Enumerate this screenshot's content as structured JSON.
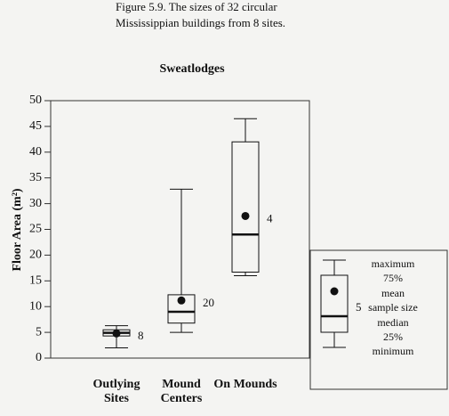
{
  "chart_data": {
    "type": "box",
    "caption": [
      "Figure 5.9. The sizes of 32 circular",
      "Mississippian buildings from 8 sites."
    ],
    "title": "Sweatlodges",
    "y_label": "Floor Area (m²)",
    "categories": [
      "Outlying Sites",
      "Mound Centers",
      "On Mounds"
    ],
    "min": [
      2,
      5,
      16
    ],
    "q1": [
      4.3,
      6.8,
      16.7
    ],
    "median": [
      4.9,
      9,
      24
    ],
    "q3": [
      5.5,
      12.3,
      42
    ],
    "max": [
      6.3,
      32.8,
      46.5
    ],
    "mean": [
      4.8,
      11.2,
      27.6
    ],
    "n": [
      8,
      20,
      4
    ],
    "ylim": [
      0,
      50
    ],
    "yticks": [
      0,
      5,
      10,
      15,
      20,
      25,
      30,
      35,
      40,
      45,
      50
    ],
    "color": "#111111",
    "legend": {
      "labels": [
        "maximum",
        "75%",
        "mean",
        "sample size",
        "median",
        "25%",
        "minimum"
      ],
      "sample_size": "5"
    }
  }
}
